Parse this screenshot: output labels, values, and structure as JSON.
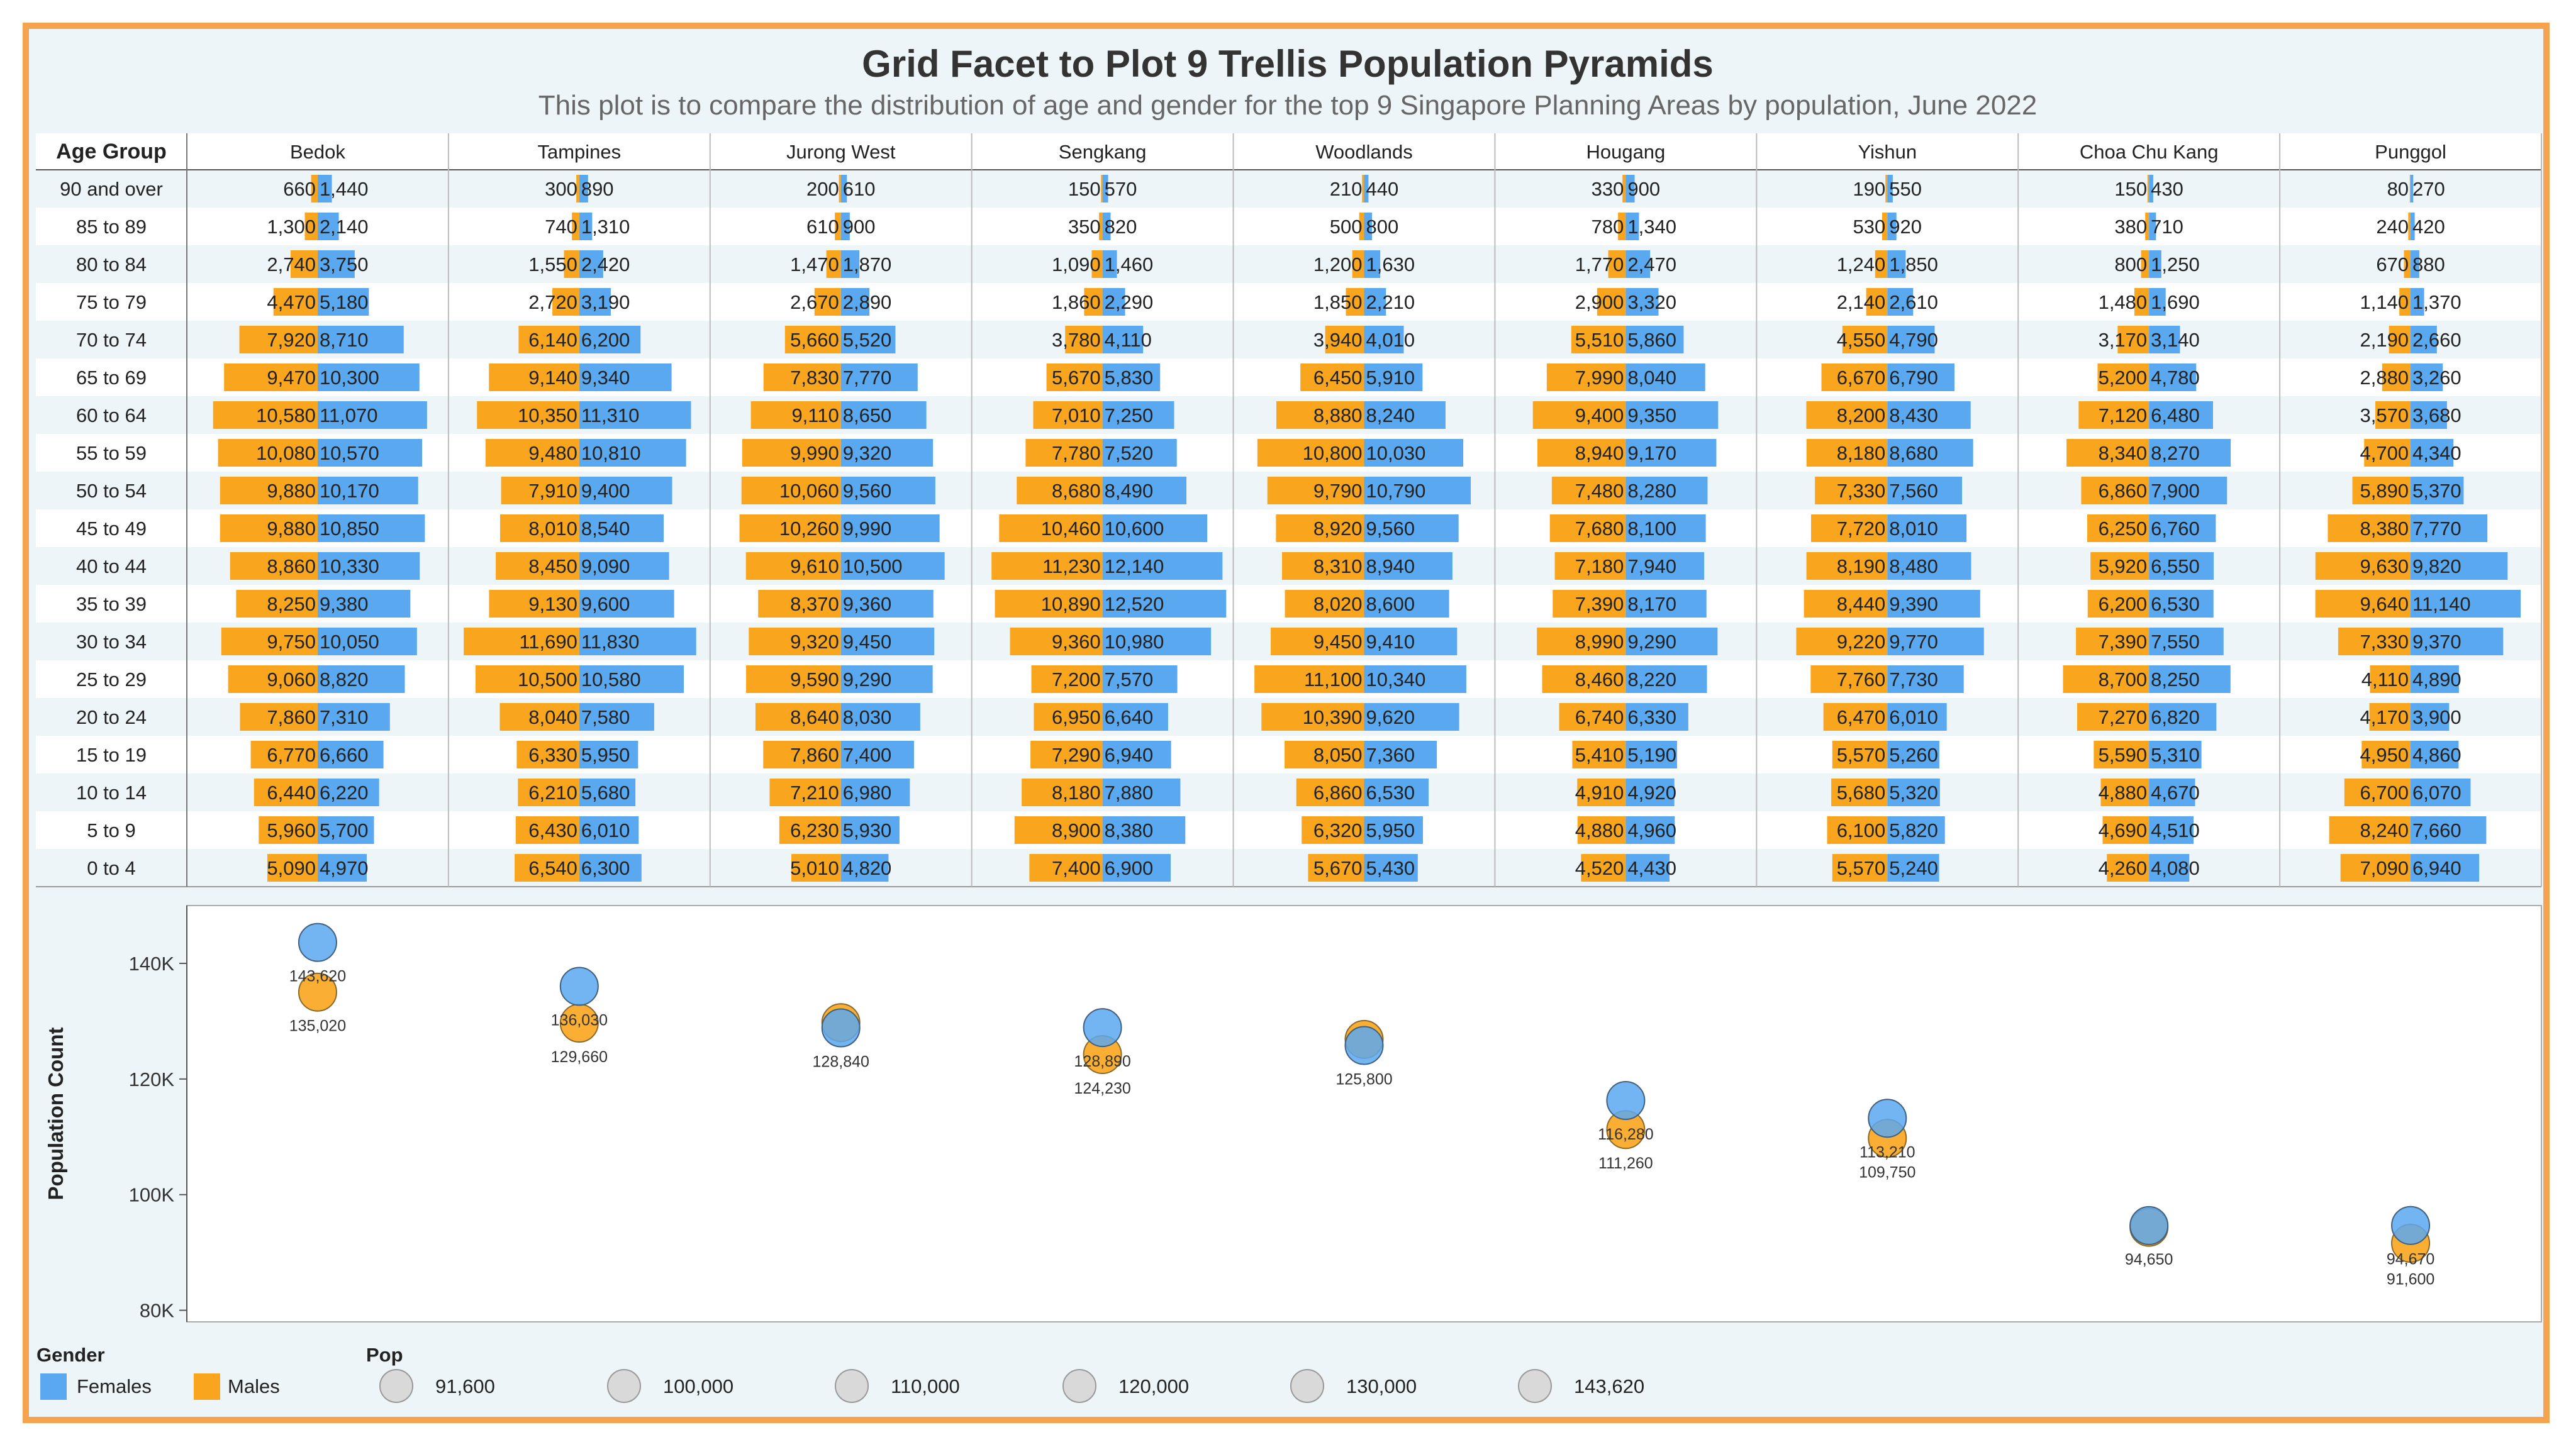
{
  "title": "Grid Facet to Plot 9 Trellis Population Pyramids",
  "subtitle": "This plot is to compare the distribution of age and gender for the top 9 Singapore Planning Areas by population, June 2022",
  "colors": {
    "females": "#5aa8f0",
    "males": "#f9a61e",
    "frame": "#f5a34f",
    "panel_bg": "#eef5f9"
  },
  "chart_data": [
    {
      "type": "bar",
      "row_header": "Age Group",
      "age_groups": [
        "90 and over",
        "85 to 89",
        "80 to 84",
        "75 to 79",
        "70 to 74",
        "65 to 69",
        "60 to 64",
        "55 to 59",
        "50 to 54",
        "45 to 49",
        "40 to 44",
        "35 to 39",
        "30 to 34",
        "25 to 29",
        "20 to 24",
        "15 to 19",
        "10 to 14",
        "5 to 9",
        "0 to 4"
      ],
      "areas": [
        {
          "name": "Bedok",
          "males": [
            660,
            1300,
            2740,
            4470,
            7920,
            9470,
            10580,
            10080,
            9880,
            9880,
            8860,
            8250,
            9750,
            9060,
            7860,
            6770,
            6440,
            5960,
            5090
          ],
          "females": [
            1440,
            2140,
            3750,
            5180,
            8710,
            10300,
            11070,
            10570,
            10170,
            10850,
            10330,
            9380,
            10050,
            8820,
            7310,
            6660,
            6220,
            5700,
            4970
          ]
        },
        {
          "name": "Tampines",
          "males": [
            300,
            740,
            1550,
            2720,
            6140,
            9140,
            10350,
            9480,
            7910,
            8010,
            8450,
            9130,
            11690,
            10500,
            8040,
            6330,
            6210,
            6430,
            6540
          ],
          "females": [
            890,
            1310,
            2420,
            3190,
            6200,
            9340,
            11310,
            10810,
            9400,
            8540,
            9090,
            9600,
            11830,
            10580,
            7580,
            5950,
            5680,
            6010,
            6300
          ]
        },
        {
          "name": "Jurong West",
          "males": [
            200,
            610,
            1470,
            2670,
            5660,
            7830,
            9110,
            9990,
            10060,
            10260,
            9610,
            8370,
            9320,
            9590,
            8640,
            7860,
            7210,
            6230,
            5010
          ],
          "females": [
            610,
            900,
            1870,
            2890,
            5520,
            7770,
            8650,
            9320,
            9560,
            9990,
            10500,
            9360,
            9450,
            9290,
            8030,
            7400,
            6980,
            5930,
            4820
          ]
        },
        {
          "name": "Sengkang",
          "males": [
            150,
            350,
            1090,
            1860,
            3780,
            5670,
            7010,
            7780,
            8680,
            10460,
            11230,
            10890,
            9360,
            7200,
            6950,
            7290,
            8180,
            8900,
            7400
          ],
          "females": [
            570,
            820,
            1460,
            2290,
            4110,
            5830,
            7250,
            7520,
            8490,
            10600,
            12140,
            12520,
            10980,
            7570,
            6640,
            6940,
            7880,
            8380,
            6900
          ]
        },
        {
          "name": "Woodlands",
          "males": [
            210,
            500,
            1200,
            1850,
            3940,
            6450,
            8880,
            10800,
            9790,
            8920,
            8310,
            8020,
            9450,
            11100,
            10390,
            8050,
            6860,
            6320,
            5670
          ],
          "females": [
            440,
            800,
            1630,
            2210,
            4010,
            5910,
            8240,
            10030,
            10790,
            9560,
            8940,
            8600,
            9410,
            10340,
            9620,
            7360,
            6530,
            5950,
            5430
          ]
        },
        {
          "name": "Hougang",
          "males": [
            330,
            780,
            1770,
            2900,
            5510,
            7990,
            9400,
            8940,
            7480,
            7680,
            7180,
            7390,
            8990,
            8460,
            6740,
            5410,
            4910,
            4880,
            4520
          ],
          "females": [
            900,
            1340,
            2470,
            3320,
            5860,
            8040,
            9350,
            9170,
            8280,
            8100,
            7940,
            8170,
            9290,
            8220,
            6330,
            5190,
            4920,
            4960,
            4430
          ]
        },
        {
          "name": "Yishun",
          "males": [
            190,
            530,
            1240,
            2140,
            4550,
            6670,
            8200,
            8180,
            7330,
            7720,
            8190,
            8440,
            9220,
            7760,
            6470,
            5570,
            5680,
            6100,
            5570
          ],
          "females": [
            550,
            920,
            1850,
            2610,
            4790,
            6790,
            8430,
            8680,
            7560,
            8010,
            8480,
            9390,
            9770,
            7730,
            6010,
            5260,
            5320,
            5820,
            5240
          ]
        },
        {
          "name": "Choa Chu Kang",
          "males": [
            150,
            380,
            800,
            1480,
            3170,
            5200,
            7120,
            8340,
            6860,
            6250,
            5920,
            6200,
            7390,
            8700,
            7270,
            5590,
            4880,
            4690,
            4260
          ],
          "females": [
            430,
            710,
            1250,
            1690,
            3140,
            4780,
            6480,
            8270,
            7900,
            6760,
            6550,
            6530,
            7550,
            8250,
            6820,
            5310,
            4670,
            4510,
            4080
          ]
        },
        {
          "name": "Punggol",
          "males": [
            80,
            240,
            670,
            1140,
            2190,
            2880,
            3570,
            4700,
            5890,
            8380,
            9630,
            9640,
            7330,
            4110,
            4170,
            4950,
            6700,
            8240,
            7090
          ],
          "females": [
            270,
            420,
            880,
            1370,
            2660,
            3260,
            3680,
            4340,
            5370,
            7770,
            9820,
            11140,
            9370,
            4890,
            3900,
            4860,
            6070,
            7660,
            6940
          ]
        }
      ]
    },
    {
      "type": "scatter",
      "ylabel": "Population Count",
      "ylim": [
        78000,
        150000
      ],
      "y_ticks": [
        80000,
        100000,
        120000,
        140000
      ],
      "y_tick_labels": [
        "80K",
        "100K",
        "120K",
        "140K"
      ],
      "points": [
        {
          "area": "Bedok",
          "females": 143620,
          "males": 135020,
          "females_label": "143,620",
          "males_label": "135,020"
        },
        {
          "area": "Tampines",
          "females": 136030,
          "males": 129660,
          "females_label": "136,030",
          "males_label": "129,660"
        },
        {
          "area": "Jurong West",
          "females": 128840,
          "males": 129750,
          "females_label": "128,840",
          "males_label": ""
        },
        {
          "area": "Sengkang",
          "females": 128890,
          "males": 124230,
          "females_label": "128,890",
          "males_label": "124,230"
        },
        {
          "area": "Woodlands",
          "females": 125800,
          "males": 126850,
          "females_label": "125,800",
          "males_label": ""
        },
        {
          "area": "Hougang",
          "females": 116280,
          "males": 111260,
          "females_label": "116,280",
          "males_label": "111,260"
        },
        {
          "area": "Yishun",
          "females": 113210,
          "males": 109750,
          "females_label": "113,210",
          "males_label": "109,750"
        },
        {
          "area": "Choa Chu Kang",
          "females": 94650,
          "males": 94360,
          "females_label": "94,650",
          "males_label": ""
        },
        {
          "area": "Punggol",
          "females": 94670,
          "males": 91600,
          "females_label": "94,670",
          "males_label": "91,600"
        }
      ]
    }
  ],
  "legend": {
    "gender_title": "Gender",
    "gender_items": [
      {
        "label": "Females",
        "color": "#5aa8f0"
      },
      {
        "label": "Males",
        "color": "#f9a61e"
      }
    ],
    "pop_title": "Pop",
    "pop_items": [
      "91,600",
      "100,000",
      "110,000",
      "120,000",
      "130,000",
      "143,620"
    ]
  }
}
